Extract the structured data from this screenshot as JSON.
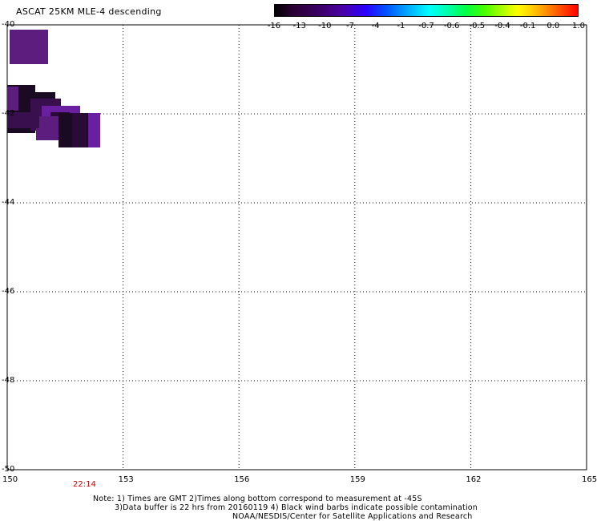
{
  "title": "ASCAT 25KM MLE-4 descending",
  "colorbar": {
    "ticks": [
      "-16",
      "-13",
      "-10",
      "-7",
      "-4",
      "-1",
      "-0.7",
      "-0.6",
      "-0.5",
      "-0.4",
      "-0.1",
      "0.0",
      "1.0"
    ]
  },
  "map": {
    "lon_range": [
      150,
      165
    ],
    "lat_range": [
      -50,
      -40
    ],
    "lon_ticks": [
      "150",
      "153",
      "156",
      "159",
      "162",
      "165"
    ],
    "lat_ticks": [
      "-40",
      "-42",
      "-44",
      "-46",
      "-48",
      "-50"
    ],
    "grid": true,
    "cell_colors": [
      "#5c1d7e",
      "#1a0a22",
      "#3a0f4e",
      "#6a1ea0",
      "#2a0b38"
    ]
  },
  "time_label": "22:14",
  "notes": {
    "line1": "Note: 1) Times are GMT 2)Times along bottom correspond to measurement at -45S",
    "line2": "3)Data buffer is 22 hrs from 20160119 4) Black wind barbs indicate possible contamination",
    "line3": "NOAA/NESDIS/Center for Satellite Applications and Research"
  }
}
